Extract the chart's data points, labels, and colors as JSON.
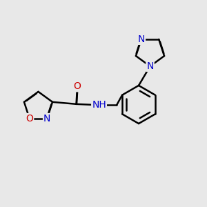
{
  "bg_color": "#e8e8e8",
  "atom_color_N": "#0000cc",
  "atom_color_O": "#cc0000",
  "bond_color": "#000000",
  "bond_width": 1.8,
  "dbo": 0.016,
  "font_size": 10,
  "fig_size": [
    3.0,
    3.0
  ],
  "dpi": 100,
  "xlim": [
    0,
    10
  ],
  "ylim": [
    0,
    10
  ]
}
